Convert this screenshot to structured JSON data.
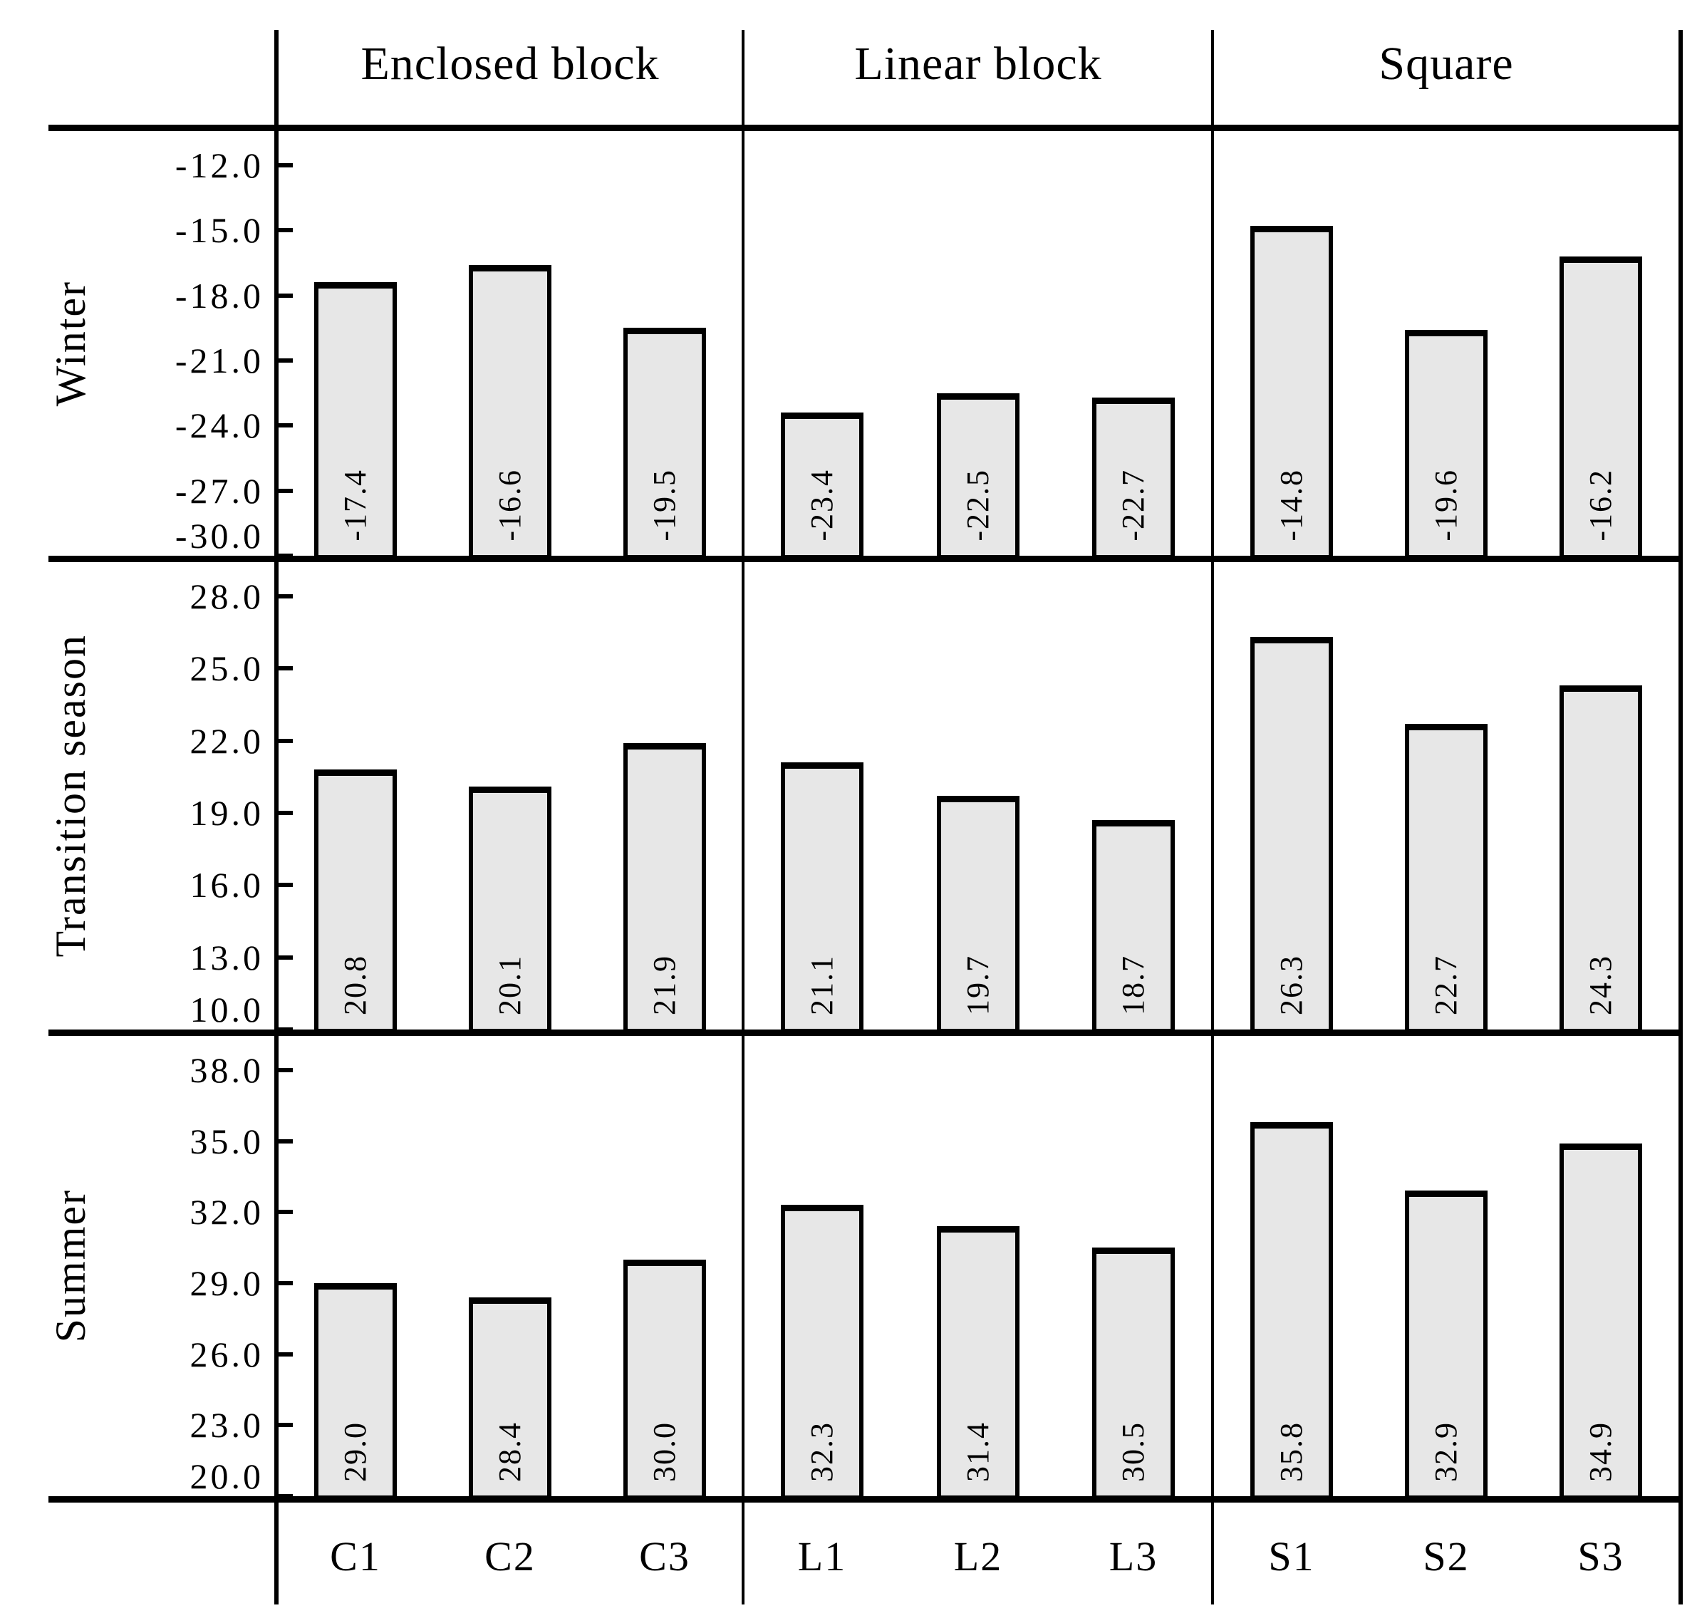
{
  "figure": {
    "background": "#ffffff",
    "text_color": "#000000",
    "bar_fill": "#e7e7e7",
    "bar_border": "#000000"
  },
  "chart_data": {
    "type": "bar",
    "orientation": "vertical",
    "grid": false,
    "legend": null,
    "column_groups": [
      {
        "label": "Enclosed block",
        "categories": [
          "C1",
          "C2",
          "C3"
        ]
      },
      {
        "label": "Linear block",
        "categories": [
          "L1",
          "L2",
          "L3"
        ]
      },
      {
        "label": "Square",
        "categories": [
          "S1",
          "S2",
          "S3"
        ]
      }
    ],
    "row_panels": [
      {
        "label": "Winter",
        "axis_top": -12.0,
        "axis_bottom": -30.0,
        "tick_step": 3.0,
        "tick_labels": [
          "-12.0",
          "-15.0",
          "-18.0",
          "-21.0",
          "-24.0",
          "-27.0",
          "-30.0"
        ],
        "values": [
          -17.4,
          -16.6,
          -19.5,
          -23.4,
          -22.5,
          -22.7,
          -14.8,
          -19.6,
          -16.2
        ],
        "value_labels": [
          "-17.4",
          "-16.6",
          "-19.5",
          "-23.4",
          "-22.5",
          "-22.7",
          "-14.8",
          "-19.6",
          "-16.2"
        ]
      },
      {
        "label": "Transition season",
        "axis_top": 28.0,
        "axis_bottom": 10.0,
        "tick_step": 3.0,
        "tick_labels": [
          "28.0",
          "25.0",
          "22.0",
          "19.0",
          "16.0",
          "13.0",
          "10.0"
        ],
        "values": [
          20.8,
          20.1,
          21.9,
          21.1,
          19.7,
          18.7,
          26.3,
          22.7,
          24.3
        ],
        "value_labels": [
          "20.8",
          "20.1",
          "21.9",
          "21.1",
          "19.7",
          "18.7",
          "26.3",
          "22.7",
          "24.3"
        ]
      },
      {
        "label": "Summer",
        "axis_top": 38.0,
        "axis_bottom": 20.0,
        "tick_step": 3.0,
        "tick_labels": [
          "38.0",
          "35.0",
          "32.0",
          "29.0",
          "26.0",
          "23.0",
          "20.0"
        ],
        "values": [
          29.0,
          28.4,
          30.0,
          32.3,
          31.4,
          30.5,
          35.8,
          32.9,
          34.9
        ],
        "value_labels": [
          "29.0",
          "28.4",
          "30.0",
          "32.3",
          "31.4",
          "30.5",
          "35.8",
          "32.9",
          "34.9"
        ]
      }
    ]
  }
}
